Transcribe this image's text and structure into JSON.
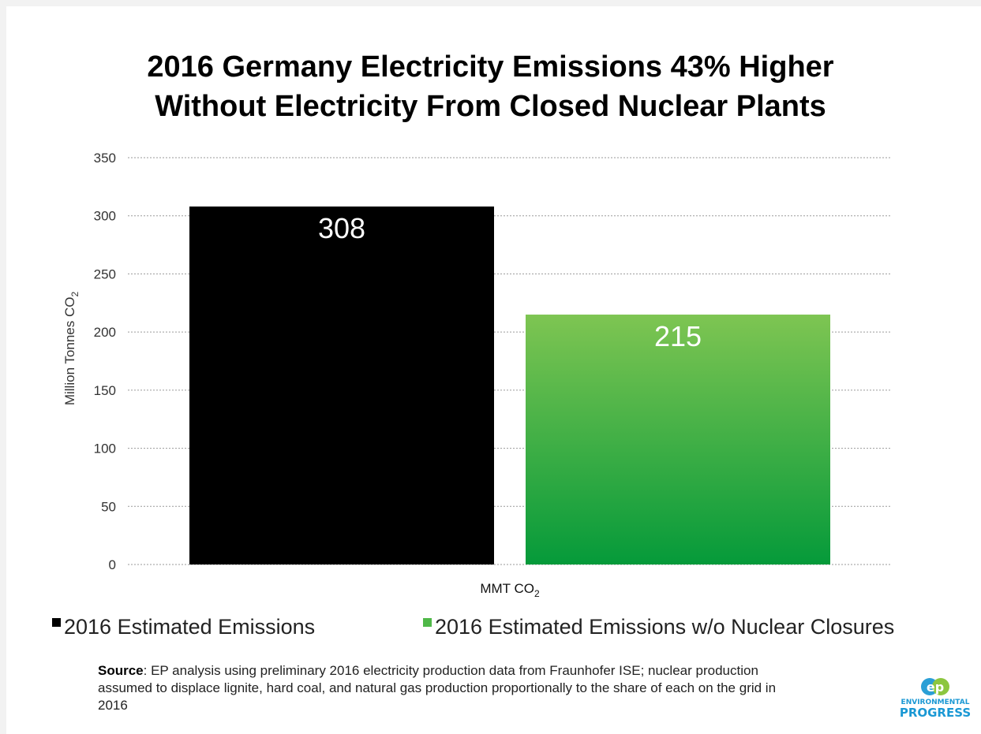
{
  "title_lines": [
    "2016 Germany Electricity Emissions 43% Higher",
    "Without Electricity From Closed Nuclear Plants"
  ],
  "chart_data": {
    "type": "bar",
    "title": "2016 Germany Electricity Emissions 43% Higher Without Electricity From Closed Nuclear Plants",
    "categories": [
      "MMT CO2"
    ],
    "xlabel": "MMT CO2",
    "ylabel": "Million Tonnes CO2",
    "ylim": [
      0,
      350
    ],
    "yticks": [
      0,
      50,
      100,
      150,
      200,
      250,
      300,
      350
    ],
    "grid": true,
    "legend_position": "bottom",
    "series": [
      {
        "name": "2016 Estimated Emissions",
        "values": [
          308
        ],
        "color": "#000000",
        "data_label": "308"
      },
      {
        "name": "2016 Estimated Emissions w/o Nuclear Closures",
        "values": [
          215
        ],
        "color": "#4fb848",
        "data_label": "215"
      }
    ]
  },
  "source": {
    "label": "Source",
    "text": ": EP analysis using preliminary 2016 electricity production data from Fraunhofer ISE; nuclear production assumed to displace lignite, hard coal, and natural gas production proportionally to the share of each on the grid in 2016"
  },
  "logo": {
    "mark": "ep",
    "line1": "ENVIRONMENTAL",
    "line2": "PROGRESS",
    "colors": {
      "e": "#2a9fd6",
      "p": "#8cc63f",
      "text": "#1a98d4"
    }
  }
}
